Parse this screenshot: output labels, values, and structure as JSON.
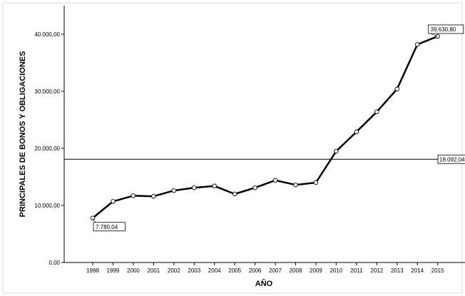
{
  "chart_data": {
    "type": "line",
    "xlabel": "AÑO",
    "ylabel": "PRINCIPALES DE BONOS Y OBLIGACIONES",
    "x": [
      "1998",
      "1999",
      "2000",
      "2001",
      "2002",
      "2003",
      "2004",
      "2005",
      "2006",
      "2007",
      "2008",
      "2009",
      "2010",
      "2011",
      "2012",
      "2013",
      "2014",
      "2015"
    ],
    "y": [
      7780.04,
      10700,
      11700,
      11600,
      12600,
      13100,
      13400,
      12000,
      13100,
      14400,
      13600,
      14000,
      19500,
      22900,
      26400,
      30400,
      38200,
      39630.8
    ],
    "ylim": [
      0,
      45000
    ],
    "yticks": [
      0,
      10000,
      20000,
      30000,
      40000
    ],
    "ytick_labels": [
      "0,00",
      "10.000,00",
      "20.000,00",
      "30.000,00",
      "40.000,00"
    ],
    "reference_line": {
      "value": 18092.04,
      "label": "18.092,04"
    },
    "annotations": [
      {
        "x": "1998",
        "label": "7.780,04"
      },
      {
        "x": "2015",
        "label": "39.630,80"
      }
    ],
    "grid": false,
    "line_color": "#000000",
    "plot_background": "#ffffff"
  }
}
